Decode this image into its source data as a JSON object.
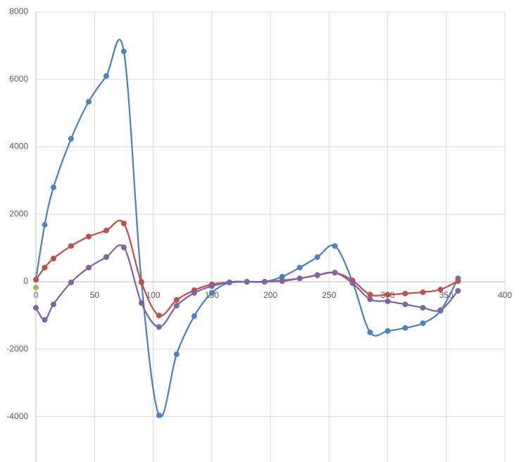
{
  "chart_data": {
    "type": "scatter",
    "x": [
      0,
      7.5,
      15,
      30,
      45,
      60,
      75,
      90,
      105,
      120,
      135,
      150,
      165,
      180,
      195,
      210,
      225,
      240,
      255,
      270,
      285,
      300,
      315,
      330,
      345,
      360
    ],
    "series": [
      {
        "color": "#4f81bd",
        "values": [
          70,
          1690,
          2800,
          4240,
          5340,
          6100,
          6830,
          0,
          -3960,
          -2150,
          -1020,
          -330,
          -20,
          0,
          0,
          150,
          420,
          730,
          1060,
          0,
          -1500,
          -1460,
          -1370,
          -1230,
          -860,
          100
        ]
      },
      {
        "color": "#c0504d",
        "values": [
          60,
          420,
          690,
          1060,
          1340,
          1520,
          1730,
          -20,
          -1000,
          -540,
          -250,
          -80,
          -20,
          0,
          0,
          20,
          100,
          190,
          270,
          40,
          -380,
          -380,
          -350,
          -310,
          -230,
          20
        ]
      },
      {
        "color": "#8064a2",
        "values": [
          -770,
          -1130,
          -670,
          -20,
          420,
          730,
          1020,
          -630,
          -1340,
          -710,
          -330,
          -130,
          -20,
          0,
          0,
          40,
          100,
          200,
          270,
          -40,
          -520,
          -580,
          -670,
          -770,
          -840,
          -270
        ]
      },
      {
        "color": "#9bbb59",
        "x": [
          0
        ],
        "values": [
          -170
        ]
      }
    ],
    "smooth": true,
    "xlim": [
      0,
      400
    ],
    "xticks": [
      0,
      50,
      100,
      150,
      200,
      250,
      300,
      350,
      400
    ],
    "ylim": [
      -5000,
      8000
    ],
    "yticks": [
      -4000,
      -2000,
      0,
      2000,
      4000,
      6000,
      8000
    ],
    "grid": true
  }
}
